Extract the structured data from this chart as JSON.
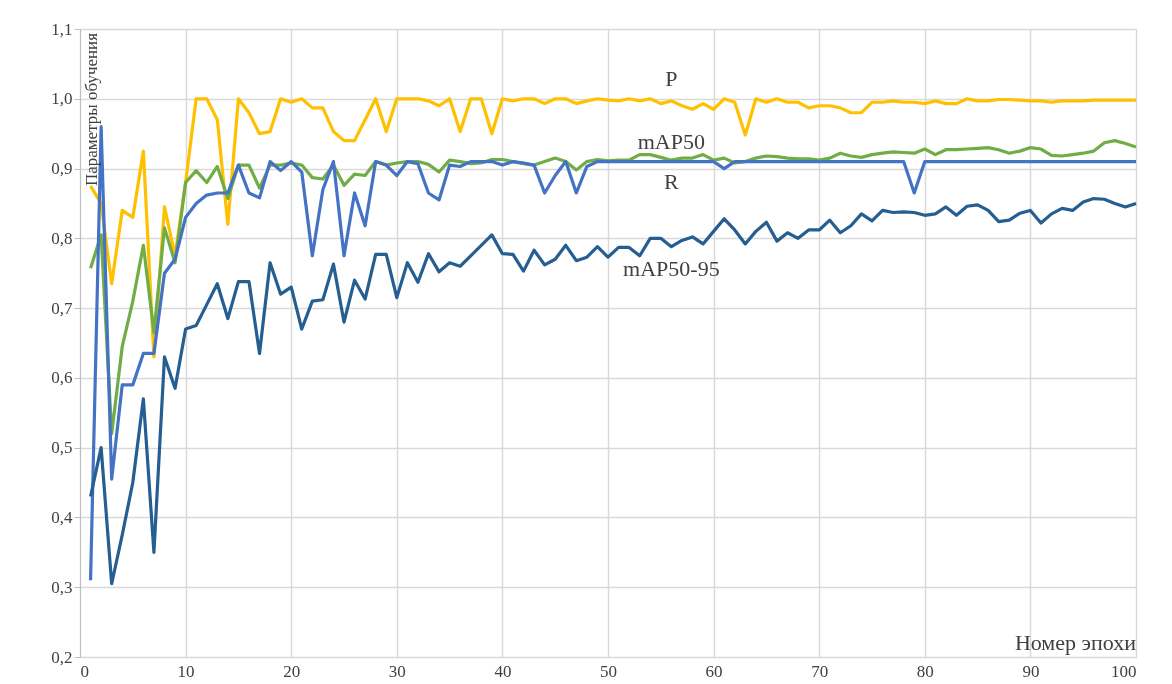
{
  "chart_data": {
    "type": "line",
    "xlabel": "Номер эпохи",
    "ylabel": "Параметры обучения",
    "x": [
      1,
      2,
      3,
      4,
      5,
      6,
      7,
      8,
      9,
      10,
      11,
      12,
      13,
      14,
      15,
      16,
      17,
      18,
      19,
      20,
      21,
      22,
      23,
      24,
      25,
      26,
      27,
      28,
      29,
      30,
      31,
      32,
      33,
      34,
      35,
      36,
      37,
      38,
      39,
      40,
      41,
      42,
      43,
      44,
      45,
      46,
      47,
      48,
      49,
      50,
      51,
      52,
      53,
      54,
      55,
      56,
      57,
      58,
      59,
      60,
      61,
      62,
      63,
      64,
      65,
      66,
      67,
      68,
      69,
      70,
      71,
      72,
      73,
      74,
      75,
      76,
      77,
      78,
      79,
      80,
      81,
      82,
      83,
      84,
      85,
      86,
      87,
      88,
      89,
      90,
      91,
      92,
      93,
      94,
      95,
      96,
      97,
      98,
      99,
      100
    ],
    "series": [
      {
        "name": "P",
        "color": "#ffc000",
        "values": [
          0.875,
          0.85,
          0.735,
          0.84,
          0.83,
          0.925,
          0.63,
          0.845,
          0.775,
          0.88,
          1.0,
          1.0,
          0.97,
          0.82,
          1.0,
          0.98,
          0.95,
          0.953,
          1.0,
          0.995,
          1.0,
          0.987,
          0.987,
          0.953,
          0.94,
          0.94,
          0.97,
          1.0,
          0.953,
          1.0,
          1.0,
          1.0,
          0.997,
          0.99,
          1.0,
          0.953,
          1.0,
          1.0,
          0.95,
          1.0,
          0.997,
          1.0,
          1.0,
          0.993,
          1.0,
          1.0,
          0.993,
          0.997,
          1.0,
          0.998,
          0.997,
          1.0,
          0.997,
          1.0,
          0.993,
          0.997,
          0.99,
          0.985,
          0.993,
          0.985,
          1.0,
          0.995,
          0.948,
          1.0,
          0.995,
          1.0,
          0.995,
          0.995,
          0.987,
          0.99,
          0.99,
          0.987,
          0.98,
          0.98,
          0.995,
          0.995,
          0.997,
          0.995,
          0.995,
          0.993,
          0.997,
          0.993,
          0.993,
          1.0,
          0.997,
          0.997,
          0.999,
          0.999,
          0.998,
          0.997,
          0.997,
          0.995,
          0.997,
          0.997,
          0.997,
          0.998,
          0.998,
          0.998,
          0.998,
          0.998
        ]
      },
      {
        "name": "mAP50",
        "color": "#70ad47",
        "values": [
          0.757,
          0.805,
          0.52,
          0.645,
          0.71,
          0.79,
          0.665,
          0.815,
          0.765,
          0.88,
          0.897,
          0.88,
          0.903,
          0.857,
          0.905,
          0.905,
          0.872,
          0.905,
          0.905,
          0.908,
          0.905,
          0.887,
          0.885,
          0.905,
          0.876,
          0.892,
          0.89,
          0.91,
          0.905,
          0.908,
          0.91,
          0.91,
          0.906,
          0.895,
          0.912,
          0.91,
          0.907,
          0.908,
          0.913,
          0.913,
          0.91,
          0.907,
          0.905,
          0.91,
          0.915,
          0.91,
          0.898,
          0.91,
          0.913,
          0.911,
          0.912,
          0.912,
          0.92,
          0.92,
          0.916,
          0.912,
          0.915,
          0.915,
          0.92,
          0.912,
          0.915,
          0.908,
          0.91,
          0.915,
          0.918,
          0.917,
          0.915,
          0.914,
          0.914,
          0.912,
          0.915,
          0.922,
          0.918,
          0.916,
          0.92,
          0.922,
          0.924,
          0.923,
          0.922,
          0.928,
          0.92,
          0.927,
          0.927,
          0.928,
          0.929,
          0.93,
          0.927,
          0.922,
          0.925,
          0.93,
          0.928,
          0.919,
          0.918,
          0.92,
          0.922,
          0.925,
          0.937,
          0.94,
          0.936,
          0.931
        ]
      },
      {
        "name": "R",
        "color": "#4472c4",
        "values": [
          0.31,
          0.96,
          0.455,
          0.59,
          0.59,
          0.635,
          0.635,
          0.75,
          0.77,
          0.83,
          0.85,
          0.862,
          0.865,
          0.865,
          0.905,
          0.865,
          0.858,
          0.91,
          0.897,
          0.91,
          0.895,
          0.775,
          0.87,
          0.91,
          0.775,
          0.865,
          0.818,
          0.91,
          0.905,
          0.89,
          0.91,
          0.907,
          0.865,
          0.855,
          0.905,
          0.903,
          0.91,
          0.91,
          0.91,
          0.905,
          0.91,
          0.908,
          0.905,
          0.865,
          0.89,
          0.91,
          0.865,
          0.903,
          0.91,
          0.91,
          0.91,
          0.91,
          0.91,
          0.91,
          0.91,
          0.91,
          0.91,
          0.91,
          0.91,
          0.91,
          0.9,
          0.91,
          0.91,
          0.91,
          0.91,
          0.91,
          0.91,
          0.91,
          0.91,
          0.91,
          0.91,
          0.91,
          0.91,
          0.91,
          0.91,
          0.91,
          0.91,
          0.91,
          0.865,
          0.91,
          0.91,
          0.91,
          0.91,
          0.91,
          0.91,
          0.91,
          0.91,
          0.91,
          0.91,
          0.91,
          0.91,
          0.91,
          0.91,
          0.91,
          0.91,
          0.91,
          0.91,
          0.91,
          0.91,
          0.91
        ]
      },
      {
        "name": "mAP50-95",
        "color": "#255e91",
        "values": [
          0.43,
          0.5,
          0.305,
          0.375,
          0.45,
          0.57,
          0.35,
          0.63,
          0.585,
          0.67,
          0.675,
          0.705,
          0.735,
          0.685,
          0.738,
          0.738,
          0.635,
          0.765,
          0.72,
          0.73,
          0.67,
          0.71,
          0.712,
          0.763,
          0.68,
          0.74,
          0.713,
          0.777,
          0.777,
          0.715,
          0.765,
          0.737,
          0.778,
          0.752,
          0.765,
          0.76,
          0.775,
          0.79,
          0.805,
          0.778,
          0.777,
          0.753,
          0.783,
          0.762,
          0.77,
          0.79,
          0.768,
          0.773,
          0.788,
          0.773,
          0.787,
          0.787,
          0.775,
          0.8,
          0.8,
          0.788,
          0.797,
          0.802,
          0.792,
          0.81,
          0.828,
          0.812,
          0.792,
          0.81,
          0.823,
          0.796,
          0.808,
          0.8,
          0.812,
          0.812,
          0.826,
          0.808,
          0.818,
          0.835,
          0.825,
          0.84,
          0.837,
          0.838,
          0.837,
          0.833,
          0.835,
          0.845,
          0.833,
          0.846,
          0.848,
          0.84,
          0.824,
          0.826,
          0.836,
          0.84,
          0.822,
          0.835,
          0.843,
          0.84,
          0.852,
          0.857,
          0.856,
          0.85,
          0.845,
          0.85
        ]
      }
    ],
    "xlim": [
      0,
      100
    ],
    "xticks": [
      0,
      10,
      20,
      30,
      40,
      50,
      60,
      70,
      80,
      90,
      100
    ],
    "ylim": [
      0.2,
      1.1
    ],
    "yticks": [
      {
        "value": 0.2,
        "label": "0,2"
      },
      {
        "value": 0.3,
        "label": "0,3"
      },
      {
        "value": 0.4,
        "label": "0,4"
      },
      {
        "value": 0.5,
        "label": "0,5"
      },
      {
        "value": 0.6,
        "label": "0,6"
      },
      {
        "value": 0.7,
        "label": "0,7"
      },
      {
        "value": 0.8,
        "label": "0,8"
      },
      {
        "value": 0.9,
        "label": "0,9"
      },
      {
        "value": 1.0,
        "label": "1,0"
      },
      {
        "value": 1.1,
        "label": "1,1"
      }
    ],
    "grid": true,
    "legend": false,
    "marker": "none",
    "line_style": "solid"
  }
}
